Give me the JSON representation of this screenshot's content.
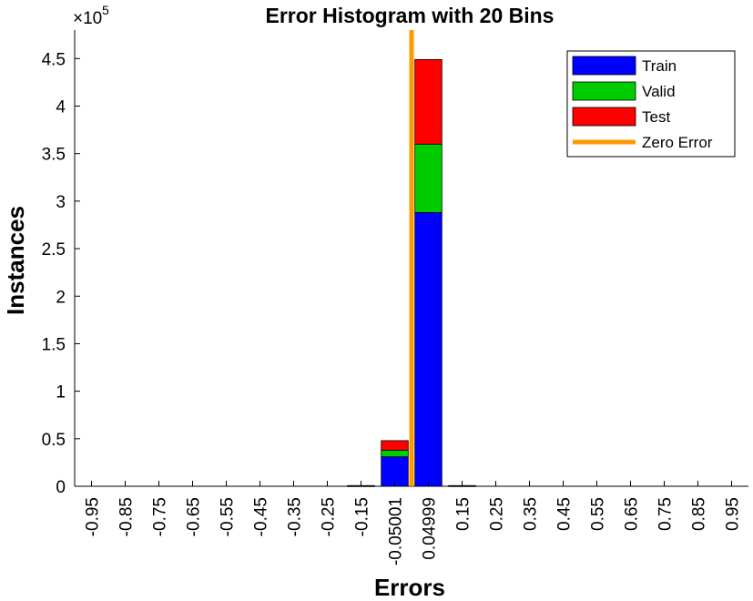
{
  "chart_data": {
    "type": "bar",
    "title": "Error Histogram with 20 Bins",
    "xlabel": "Errors",
    "ylabel": "Instances",
    "y_multiplier_text": "×10",
    "y_multiplier_exponent": "5",
    "ylim": [
      0,
      480000
    ],
    "yticks": [
      0,
      50000,
      100000,
      150000,
      200000,
      250000,
      300000,
      350000,
      400000,
      450000
    ],
    "ytick_labels": [
      "0",
      "0.5",
      "1",
      "1.5",
      "2",
      "2.5",
      "3",
      "3.5",
      "4",
      "4.5"
    ],
    "categories": [
      "-0.95",
      "-0.85",
      "-0.75",
      "-0.65",
      "-0.55",
      "-0.45",
      "-0.35",
      "-0.25",
      "-0.15",
      "-0.05001",
      "0.04999",
      "0.15",
      "0.25",
      "0.35",
      "0.45",
      "0.55",
      "0.65",
      "0.75",
      "0.85",
      "0.95"
    ],
    "stacked": true,
    "series": [
      {
        "name": "Train",
        "color": "#0000ff",
        "values": [
          0,
          0,
          0,
          0,
          0,
          0,
          0,
          0,
          500,
          31000,
          288000,
          500,
          0,
          0,
          0,
          0,
          0,
          0,
          0,
          0
        ]
      },
      {
        "name": "Valid",
        "color": "#00cc00",
        "values": [
          0,
          0,
          0,
          0,
          0,
          0,
          0,
          0,
          100,
          7000,
          72000,
          100,
          0,
          0,
          0,
          0,
          0,
          0,
          0,
          0
        ]
      },
      {
        "name": "Test",
        "color": "#ff0000",
        "values": [
          0,
          0,
          0,
          0,
          0,
          0,
          0,
          0,
          100,
          10000,
          89000,
          100,
          0,
          0,
          0,
          0,
          0,
          0,
          0,
          0
        ]
      }
    ],
    "zero_error": {
      "name": "Zero Error",
      "color": "#ff9900",
      "x": 0
    },
    "legend_position": "top-right",
    "grid": false
  }
}
